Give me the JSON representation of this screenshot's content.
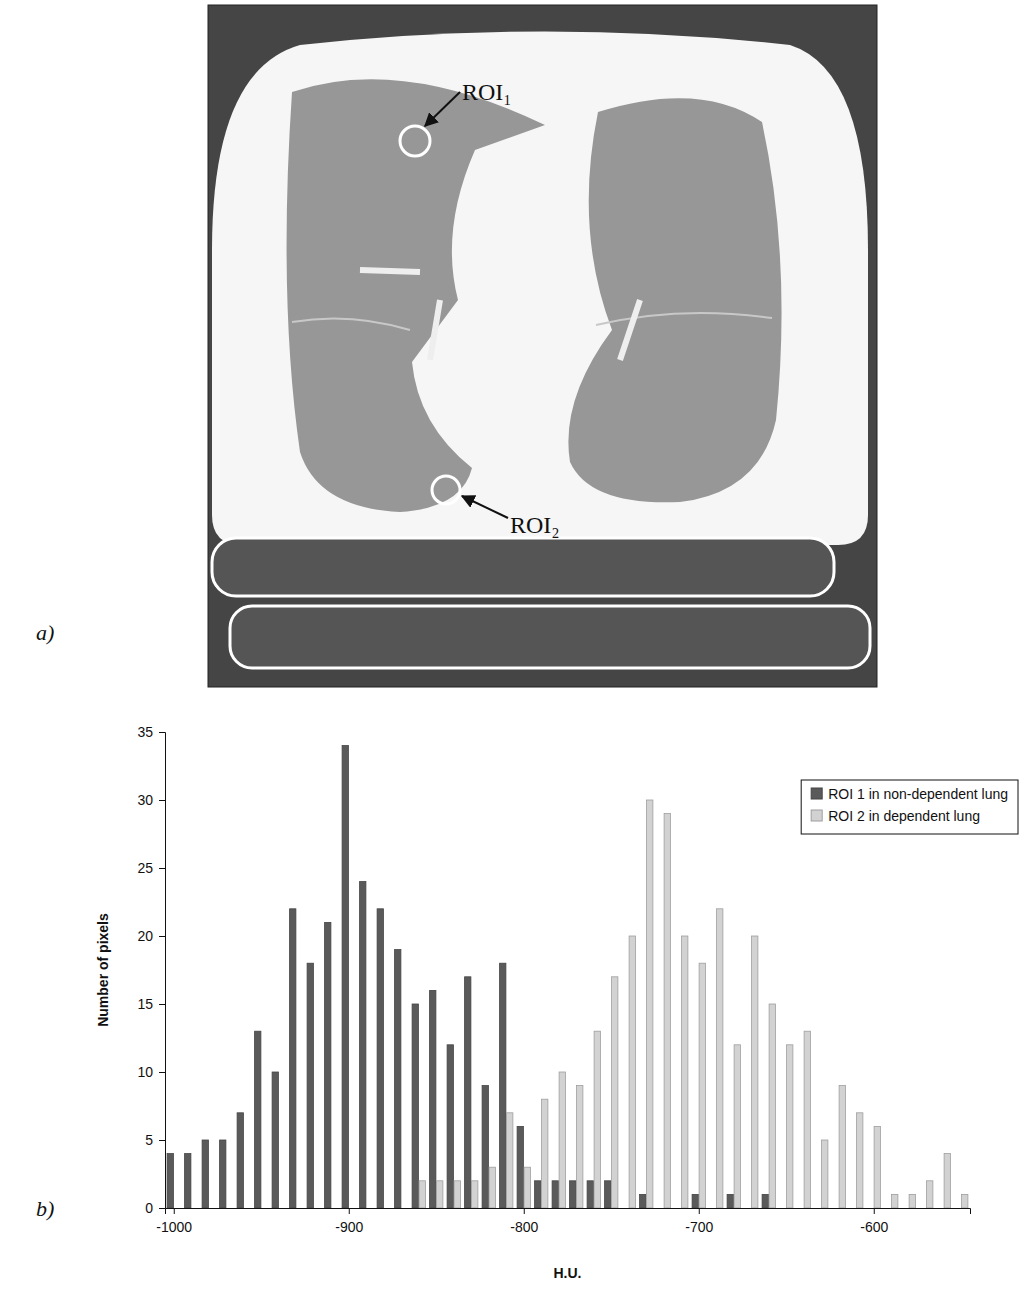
{
  "figure": {
    "panels": [
      "a)",
      "b)"
    ],
    "ct_annotations": [
      "ROI₁",
      "ROI₂"
    ]
  },
  "chart_data": {
    "type": "bar",
    "x_label": "H.U.",
    "y_label": "Number of pixels",
    "x": [
      -1000,
      -990,
      -980,
      -970,
      -960,
      -950,
      -940,
      -930,
      -920,
      -910,
      -900,
      -890,
      -880,
      -870,
      -860,
      -850,
      -840,
      -830,
      -820,
      -810,
      -800,
      -790,
      -780,
      -770,
      -760,
      -750,
      -740,
      -730,
      -720,
      -710,
      -700,
      -690,
      -680,
      -670,
      -660,
      -650,
      -640,
      -630,
      -620,
      -610,
      -600,
      -590,
      -580,
      -570,
      -560,
      -550
    ],
    "series": [
      {
        "name": "ROI 1 in non-dependent lung",
        "color": "#5a5a5a",
        "values": [
          4,
          4,
          5,
          5,
          7,
          13,
          10,
          22,
          18,
          21,
          34,
          24,
          22,
          19,
          15,
          16,
          12,
          17,
          9,
          18,
          6,
          2,
          2,
          2,
          2,
          2,
          0,
          1,
          0,
          0,
          1,
          0,
          1,
          0,
          1,
          0,
          0,
          0,
          0,
          0,
          0,
          0,
          0,
          0,
          0,
          0
        ]
      },
      {
        "name": "ROI 2 in dependent lung",
        "color": "#d2d2d2",
        "values": [
          0,
          0,
          0,
          0,
          0,
          0,
          0,
          0,
          0,
          0,
          0,
          0,
          0,
          0,
          2,
          2,
          2,
          2,
          3,
          7,
          3,
          8,
          10,
          9,
          13,
          17,
          20,
          30,
          29,
          20,
          18,
          22,
          12,
          20,
          15,
          12,
          13,
          5,
          9,
          7,
          6,
          1,
          1,
          2,
          4,
          1
        ]
      }
    ],
    "xlim": [
      -1005,
      -545
    ],
    "xticks": [
      -1000,
      -900,
      -800,
      -700,
      -600
    ],
    "ylim": [
      0,
      35
    ],
    "yticks": [
      0,
      5,
      10,
      15,
      20,
      25,
      30,
      35
    ],
    "grid": false,
    "legend": "top-right"
  }
}
